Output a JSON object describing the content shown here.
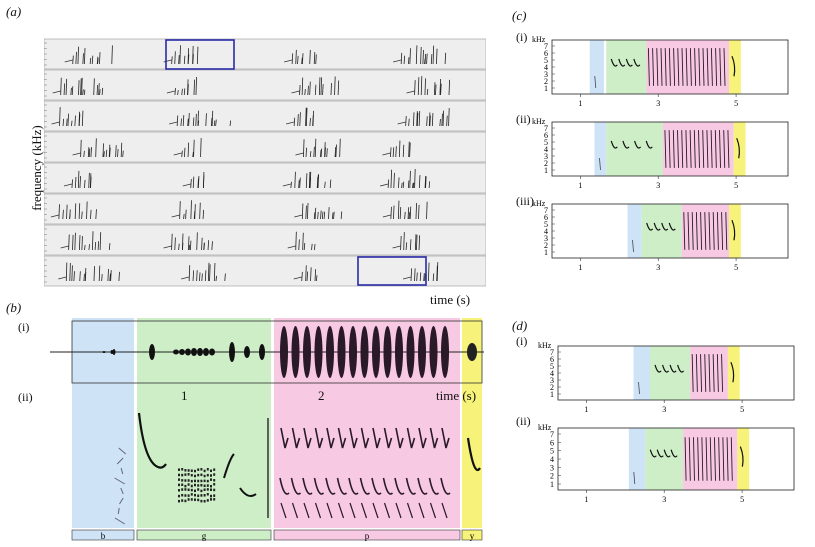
{
  "panel_a": {
    "label": "(a)",
    "ylabel": "frequency (kHz)",
    "xlabel": "time (s)",
    "rows": 8
  },
  "panel_b": {
    "label": "(b)",
    "sub_i": "(i)",
    "sub_ii": "(ii)",
    "ticks": [
      "1",
      "2"
    ],
    "xlabel": "time (s)",
    "segments": [
      {
        "key": "b",
        "color": "#cfe3f7",
        "label": "b"
      },
      {
        "key": "g",
        "color": "#cdeec7",
        "label": "g"
      },
      {
        "key": "p",
        "color": "#f7c9e3",
        "label": "p"
      },
      {
        "key": "y",
        "color": "#f6f27a",
        "label": "y"
      }
    ]
  },
  "panel_c": {
    "label": "(c)",
    "subs": [
      {
        "label": "(i)",
        "unit": "kHz",
        "yticks": [
          "7",
          "6",
          "5",
          "4",
          "3",
          "2",
          "1"
        ],
        "xticks": [
          "1",
          "3",
          "5"
        ]
      },
      {
        "label": "(ii)",
        "unit": "kHz",
        "yticks": [
          "7",
          "6",
          "5",
          "4",
          "3",
          "2",
          "1"
        ],
        "xticks": [
          "1",
          "3",
          "5"
        ]
      },
      {
        "label": "(iii)",
        "unit": "kHz",
        "yticks": [
          "7",
          "6",
          "5",
          "4",
          "3",
          "2",
          "1"
        ],
        "xticks": [
          "1",
          "3",
          "5"
        ]
      }
    ]
  },
  "panel_d": {
    "label": "(d)",
    "subs": [
      {
        "label": "(i)",
        "unit": "kHz",
        "yticks": [
          "7",
          "6",
          "5",
          "4",
          "3",
          "2",
          "1"
        ],
        "xticks": [
          "1",
          "3",
          "5"
        ]
      },
      {
        "label": "(ii)",
        "unit": "kHz",
        "yticks": [
          "7",
          "6",
          "5",
          "4",
          "3",
          "2",
          "1"
        ],
        "xticks": [
          "1",
          "3",
          "5"
        ]
      }
    ]
  },
  "colors": {
    "blue": "#cfe3f7",
    "green": "#cdeec7",
    "pink": "#f7c9e3",
    "yellow": "#f6f27a",
    "highlight_box": "#2a2aa8"
  }
}
